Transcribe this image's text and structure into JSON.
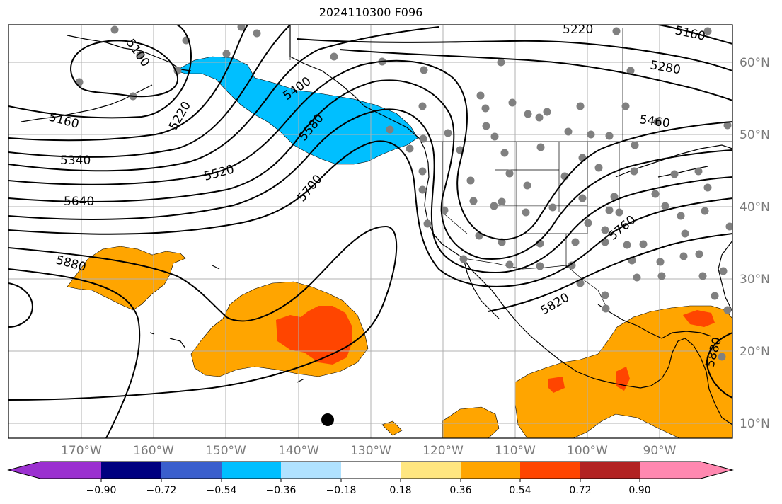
{
  "title": "2024110300 F096",
  "lon_labels": [
    "170°W",
    "160°W",
    "150°W",
    "140°W",
    "130°W",
    "120°W",
    "110°W",
    "100°W",
    "90°W"
  ],
  "lat_labels": [
    "60°N",
    "50°N",
    "40°N",
    "30°N",
    "20°N",
    "10°N"
  ],
  "contour_labels": [
    "5100",
    "5160",
    "5220",
    "5340",
    "5400",
    "5520",
    "5580",
    "5640",
    "5700",
    "5760",
    "5820",
    "5880",
    "5160",
    "5280",
    "5460",
    "5880",
    "5220"
  ],
  "colorbar": {
    "colors": [
      "#9b30d0",
      "#000080",
      "#3a5fcd",
      "#00bfff",
      "#b0e2ff",
      "#ffffff",
      "#ffe680",
      "#ffa500",
      "#ff4500",
      "#b22222",
      "#ff88b0"
    ],
    "tick_labels": [
      "−0.90",
      "−0.72",
      "−0.54",
      "−0.36",
      "−0.18",
      "0.18",
      "0.36",
      "0.54",
      "0.72",
      "0.90"
    ]
  },
  "fill_colors": {
    "positive": "#ffa500",
    "strong_positive": "#ff4500",
    "negative": "#00bfff"
  }
}
